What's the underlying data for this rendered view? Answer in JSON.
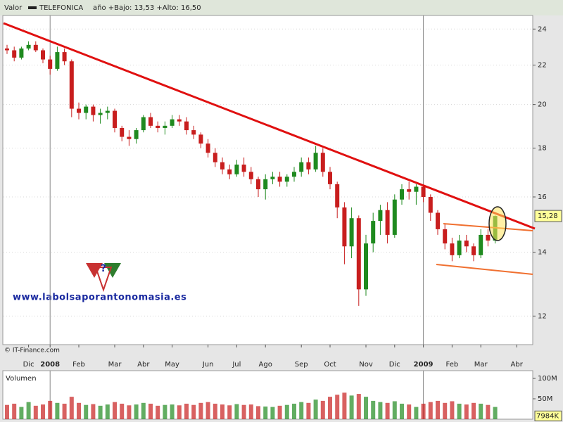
{
  "chart_data": {
    "type": "candlestick",
    "label": "Valor",
    "subtitle": "año +Bajo: 13,53 +Alto: 16,50",
    "source": "© IT-Finance.com",
    "watermark": "www.labolsaporantonomasia.es",
    "log_scale": true,
    "grid": true,
    "categories": [
      null,
      null,
      null,
      "Dic",
      null,
      null,
      "2008",
      null,
      null,
      null,
      "Feb",
      null,
      null,
      null,
      null,
      "Mar",
      null,
      null,
      null,
      "Abr",
      null,
      null,
      null,
      "May",
      null,
      null,
      null,
      null,
      "Jun",
      null,
      null,
      null,
      "Jul",
      null,
      null,
      null,
      "Ago",
      null,
      null,
      null,
      null,
      "Sep",
      null,
      null,
      null,
      "Oct",
      null,
      null,
      null,
      null,
      "Nov",
      null,
      null,
      null,
      "Dic",
      null,
      null,
      null,
      "2009",
      null,
      null,
      null,
      "Feb",
      null,
      null,
      null,
      "Mar",
      null,
      null,
      null,
      null,
      "Abr"
    ],
    "series": [
      {
        "name": "TELEFONICA",
        "up_color": "#1f8a1f",
        "down_color": "#c81e1e",
        "open": [
          22.9,
          22.8,
          22.4,
          22.9,
          23.1,
          22.8,
          22.3,
          21.8,
          22.7,
          22.2,
          19.8,
          19.6,
          19.9,
          19.5,
          19.6,
          19.7,
          18.9,
          18.5,
          18.4,
          18.8,
          19.4,
          19.0,
          18.9,
          19.0,
          19.3,
          19.2,
          18.8,
          18.6,
          18.2,
          17.8,
          17.4,
          17.1,
          16.9,
          17.3,
          17.0,
          16.7,
          16.3,
          16.7,
          16.8,
          16.6,
          16.8,
          17.0,
          17.4,
          17.1,
          17.8,
          17.0,
          16.5,
          15.6,
          14.2,
          15.2,
          12.8,
          14.3,
          15.1,
          15.5,
          14.6,
          15.9,
          16.3,
          16.2,
          16.4,
          16.0,
          15.4,
          14.8,
          14.3,
          13.9,
          14.4,
          14.2,
          13.9,
          14.6,
          14.4,
          null,
          null,
          null
        ],
        "high": [
          23.1,
          23.0,
          23.0,
          23.3,
          23.3,
          22.9,
          22.5,
          23.0,
          22.9,
          22.3,
          20.1,
          20.0,
          20.0,
          19.8,
          19.9,
          19.8,
          19.0,
          18.8,
          18.9,
          19.5,
          19.6,
          19.2,
          19.2,
          19.5,
          19.5,
          19.4,
          19.0,
          18.7,
          18.4,
          18.0,
          17.6,
          17.3,
          17.5,
          17.6,
          17.2,
          16.8,
          16.9,
          17.0,
          17.0,
          16.9,
          17.2,
          17.6,
          17.6,
          18.1,
          18.0,
          17.2,
          16.6,
          15.8,
          15.6,
          15.3,
          14.6,
          15.4,
          15.7,
          15.8,
          16.1,
          16.5,
          16.6,
          16.5,
          16.5,
          16.1,
          15.5,
          15.0,
          14.5,
          14.6,
          14.6,
          14.3,
          14.8,
          14.8,
          15.3,
          null,
          null,
          null
        ],
        "low": [
          22.6,
          22.2,
          22.3,
          22.8,
          22.7,
          22.1,
          21.5,
          21.7,
          22.0,
          19.4,
          19.3,
          19.3,
          19.2,
          19.1,
          19.3,
          18.7,
          18.3,
          18.1,
          18.2,
          18.7,
          18.9,
          18.7,
          18.6,
          18.9,
          19.0,
          18.6,
          18.4,
          18.0,
          17.6,
          17.2,
          16.9,
          16.7,
          16.8,
          16.8,
          16.5,
          16.0,
          15.9,
          16.5,
          16.4,
          16.4,
          16.6,
          16.8,
          16.9,
          17.0,
          16.8,
          16.3,
          15.2,
          13.6,
          13.8,
          12.3,
          12.6,
          14.0,
          14.6,
          14.3,
          14.5,
          15.7,
          15.9,
          15.7,
          15.8,
          15.1,
          14.6,
          14.1,
          13.7,
          13.8,
          14.0,
          13.7,
          13.8,
          14.2,
          14.3,
          null,
          null,
          null
        ],
        "close": [
          22.8,
          22.4,
          22.9,
          23.1,
          22.8,
          22.3,
          21.8,
          22.7,
          22.2,
          19.8,
          19.6,
          19.9,
          19.5,
          19.6,
          19.7,
          18.9,
          18.5,
          18.4,
          18.8,
          19.4,
          19.0,
          18.9,
          19.0,
          19.3,
          19.2,
          18.8,
          18.6,
          18.2,
          17.8,
          17.4,
          17.1,
          16.9,
          17.3,
          17.0,
          16.7,
          16.3,
          16.7,
          16.8,
          16.6,
          16.8,
          17.0,
          17.4,
          17.1,
          17.8,
          17.0,
          16.5,
          15.6,
          14.2,
          15.2,
          12.8,
          14.3,
          15.1,
          15.5,
          14.6,
          15.9,
          16.3,
          16.2,
          16.4,
          16.0,
          15.4,
          14.8,
          14.3,
          13.9,
          14.4,
          14.2,
          13.9,
          14.6,
          14.4,
          15.28,
          null,
          null,
          null
        ]
      }
    ],
    "ylim": [
      11.2,
      24.8
    ],
    "yticks": [
      12,
      14,
      16,
      18,
      20,
      22,
      24
    ],
    "current_value": {
      "value": 15.28,
      "label": "15,28"
    },
    "volume": {
      "title": "Volumen",
      "values": [
        35,
        38,
        30,
        42,
        33,
        36,
        45,
        40,
        38,
        55,
        40,
        35,
        37,
        33,
        36,
        42,
        38,
        34,
        36,
        40,
        38,
        33,
        35,
        36,
        34,
        38,
        35,
        40,
        42,
        38,
        36,
        34,
        37,
        35,
        36,
        32,
        31,
        30,
        33,
        35,
        38,
        42,
        40,
        48,
        45,
        55,
        60,
        65,
        58,
        62,
        55,
        45,
        42,
        40,
        44,
        38,
        36,
        30,
        38,
        42,
        45,
        40,
        44,
        38,
        36,
        40,
        38,
        35,
        30,
        null,
        null,
        null
      ],
      "ylim": [
        0,
        119
      ],
      "yticks": [
        {
          "value": 50,
          "label": "50M"
        },
        {
          "value": 100,
          "label": "100M"
        }
      ],
      "last": {
        "value": 7.984,
        "label": "7984K"
      }
    }
  }
}
